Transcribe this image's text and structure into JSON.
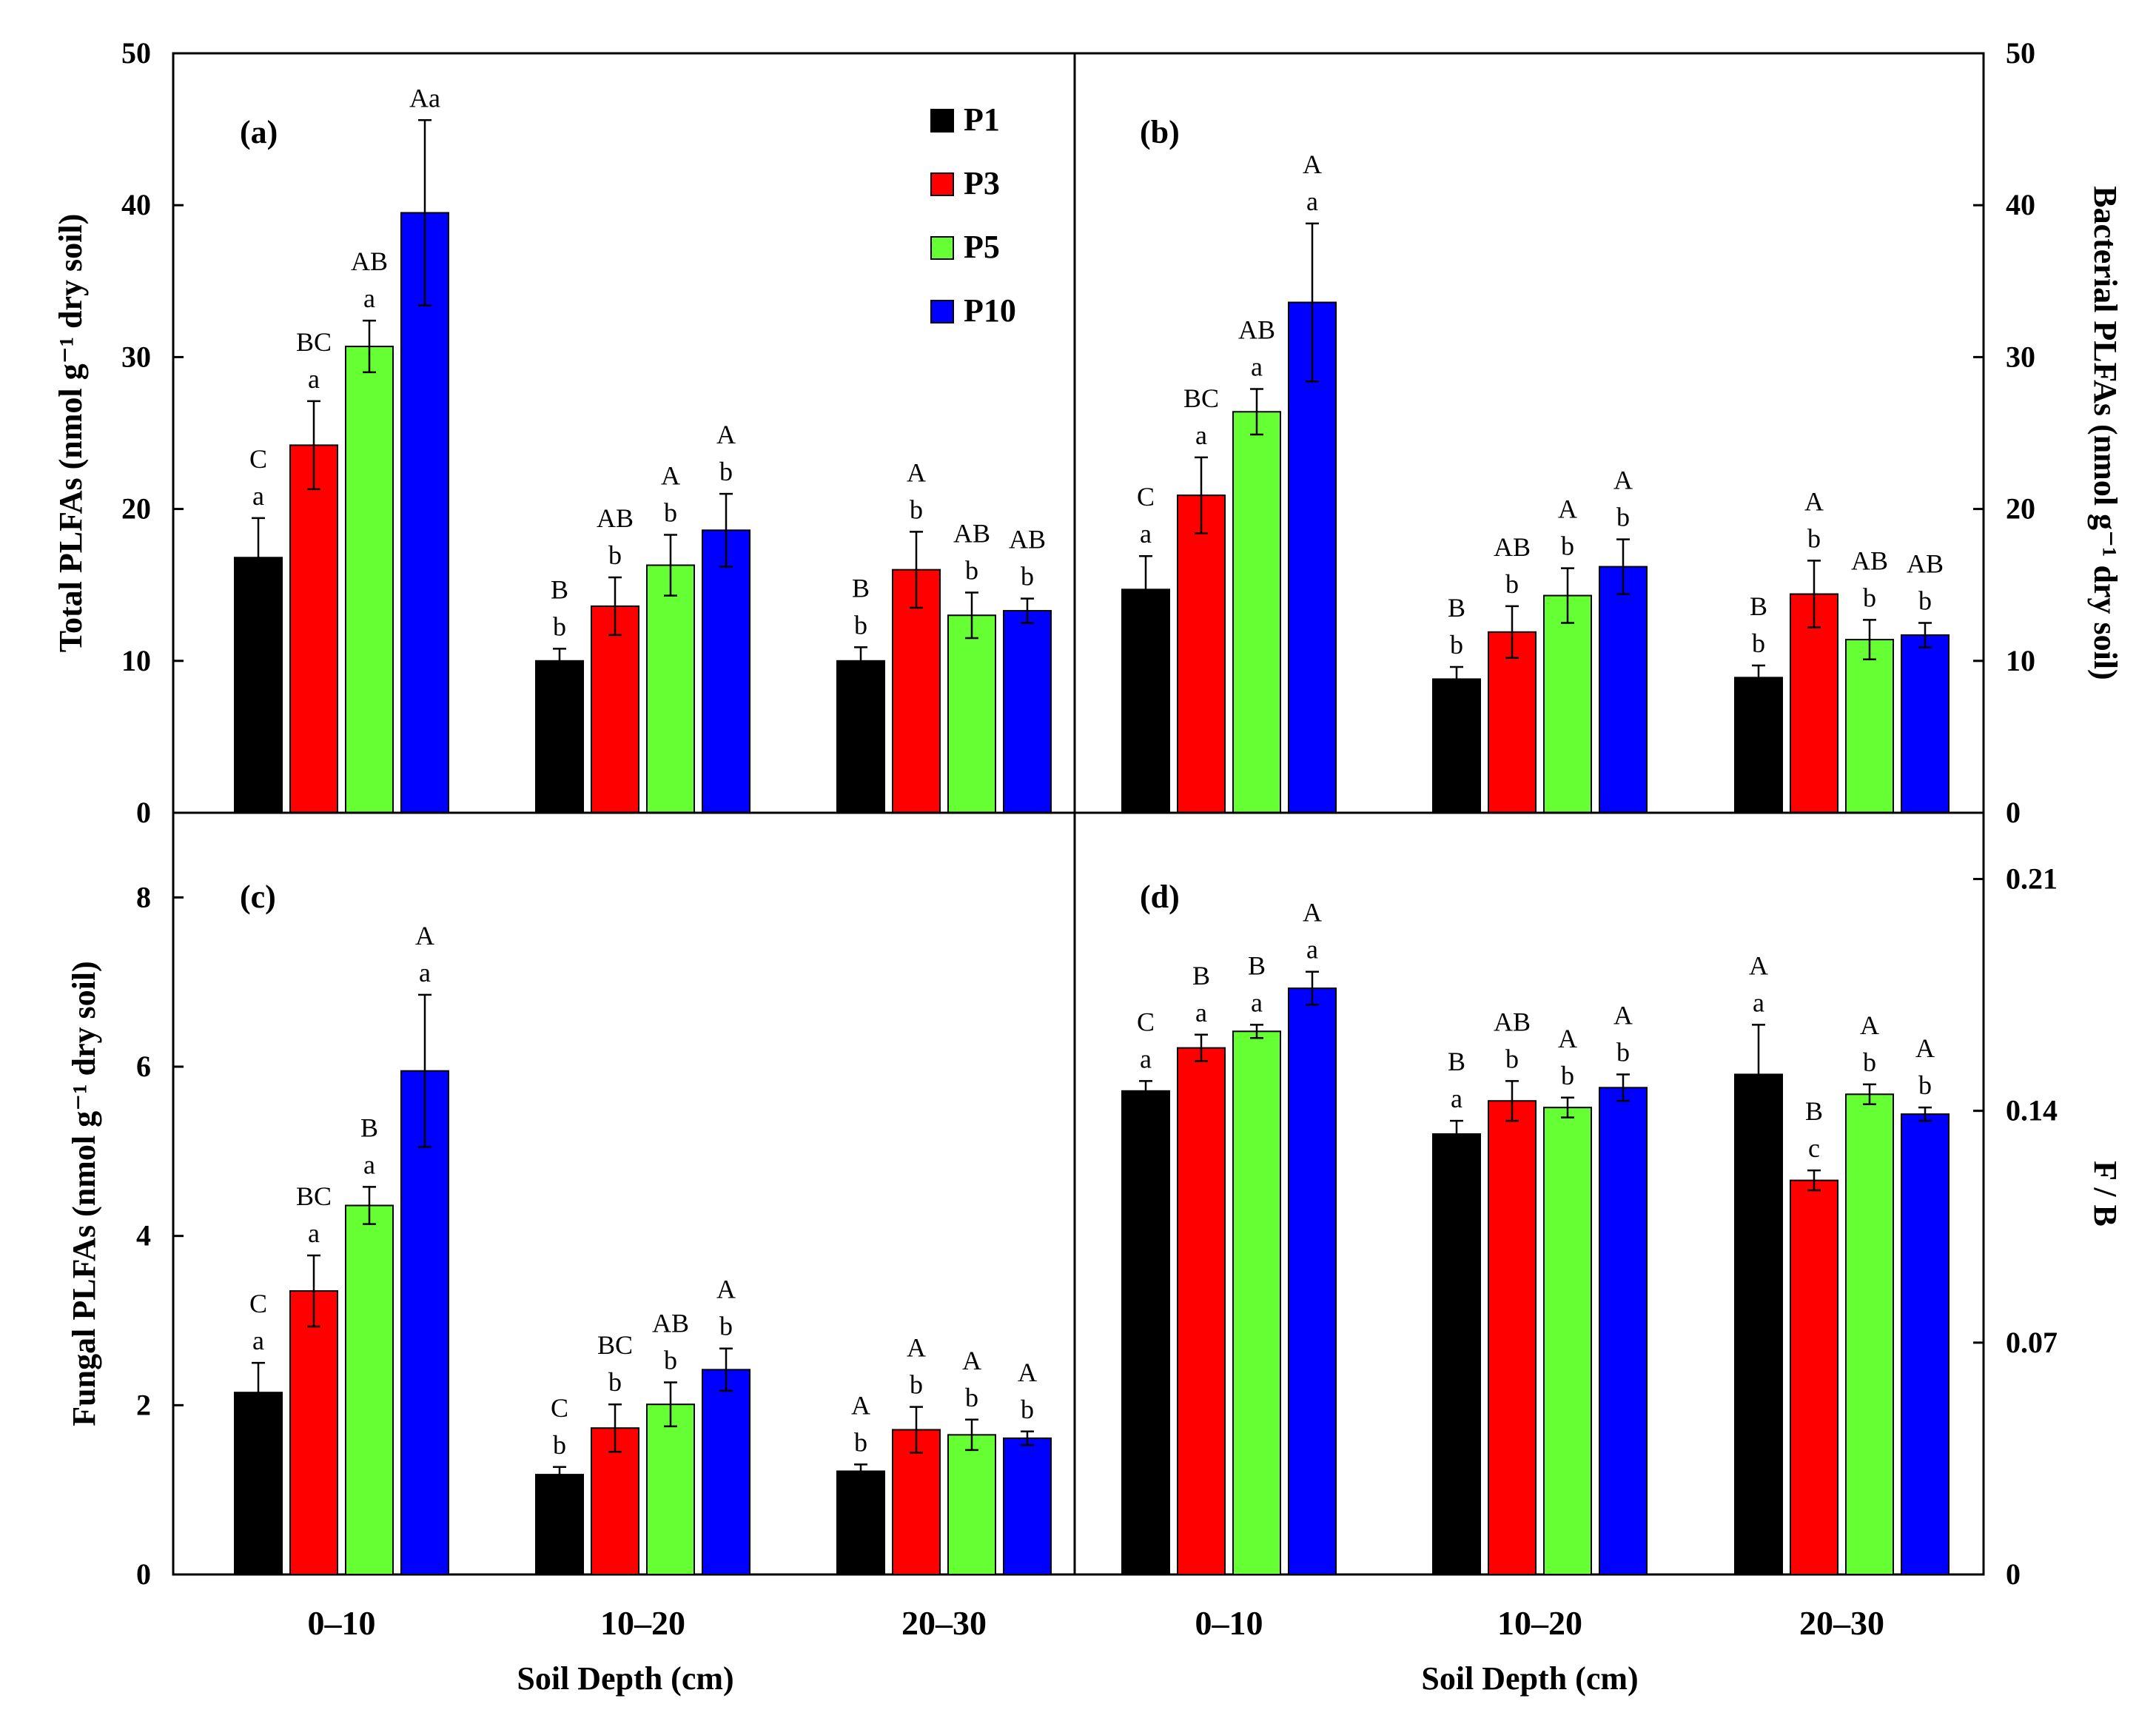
{
  "colors": {
    "P1": "#000000",
    "P3": "#ff0000",
    "P5": "#66ff33",
    "P10": "#0000ff"
  },
  "legend": [
    "P1",
    "P3",
    "P5",
    "P10"
  ],
  "xlabel": "Soil Depth (cm)",
  "chart_data": [
    {
      "type": "bar",
      "id": "a",
      "panel_label": "(a)",
      "ylabel": "Total PLFAs (nmol g⁻¹ dry soil)",
      "ylim": [
        0,
        50
      ],
      "yticks": [
        "0",
        "10",
        "20",
        "30",
        "40",
        "50"
      ],
      "ytick_values": [
        0,
        10,
        20,
        30,
        40,
        50
      ],
      "categories": [
        "0–10",
        "10–20",
        "20–30"
      ],
      "series": [
        {
          "name": "P1",
          "values": [
            16.8,
            10.0,
            10.0
          ],
          "errors": [
            2.6,
            0.8,
            0.9
          ]
        },
        {
          "name": "P3",
          "values": [
            24.2,
            13.6,
            16.0
          ],
          "errors": [
            2.9,
            1.9,
            2.5
          ]
        },
        {
          "name": "P5",
          "values": [
            30.7,
            16.3,
            13.0
          ],
          "errors": [
            1.7,
            2.0,
            1.5
          ]
        },
        {
          "name": "P10",
          "values": [
            39.5,
            18.6,
            13.3
          ],
          "errors": [
            6.1,
            2.4,
            0.8
          ]
        }
      ],
      "labels": [
        [
          [
            "C",
            "a"
          ],
          [
            "B",
            "b"
          ],
          [
            "B",
            "b"
          ]
        ],
        [
          [
            "BC",
            "a"
          ],
          [
            "AB",
            "b"
          ],
          [
            "A",
            "b"
          ]
        ],
        [
          [
            "AB",
            "a"
          ],
          [
            "A",
            "b"
          ],
          [
            "AB",
            "b"
          ]
        ],
        [
          [
            "Aa"
          ],
          [
            "A",
            "b"
          ],
          [
            "AB",
            "b"
          ]
        ]
      ]
    },
    {
      "type": "bar",
      "id": "b",
      "panel_label": "(b)",
      "ylabel": "Bacterial PLFAs (nmol g⁻¹ dry soil)",
      "ylim": [
        0,
        50
      ],
      "yticks": [
        "0",
        "10",
        "20",
        "30",
        "40",
        "50"
      ],
      "ytick_values": [
        0,
        10,
        20,
        30,
        40,
        50
      ],
      "categories": [
        "0–10",
        "10–20",
        "20–30"
      ],
      "series": [
        {
          "name": "P1",
          "values": [
            14.7,
            8.8,
            8.9
          ],
          "errors": [
            2.2,
            0.8,
            0.8
          ]
        },
        {
          "name": "P3",
          "values": [
            20.9,
            11.9,
            14.4
          ],
          "errors": [
            2.5,
            1.7,
            2.2
          ]
        },
        {
          "name": "P5",
          "values": [
            26.4,
            14.3,
            11.4
          ],
          "errors": [
            1.5,
            1.8,
            1.3
          ]
        },
        {
          "name": "P10",
          "values": [
            33.6,
            16.2,
            11.7
          ],
          "errors": [
            5.2,
            1.8,
            0.8
          ]
        }
      ],
      "labels": [
        [
          [
            "C",
            "a"
          ],
          [
            "B",
            "b"
          ],
          [
            "B",
            "b"
          ]
        ],
        [
          [
            "BC",
            "a"
          ],
          [
            "AB",
            "b"
          ],
          [
            "A",
            "b"
          ]
        ],
        [
          [
            "AB",
            "a"
          ],
          [
            "A",
            "b"
          ],
          [
            "AB",
            "b"
          ]
        ],
        [
          [
            "A",
            "a"
          ],
          [
            "A",
            "b"
          ],
          [
            "AB",
            "b"
          ]
        ]
      ]
    },
    {
      "type": "bar",
      "id": "c",
      "panel_label": "(c)",
      "ylabel": "Fungal PLFAs (nmol g⁻¹ dry soil)",
      "ylim": [
        0,
        9
      ],
      "yticks": [
        "0",
        "2",
        "4",
        "6",
        "8"
      ],
      "ytick_values": [
        0,
        2,
        4,
        6,
        8
      ],
      "categories": [
        "0–10",
        "10–20",
        "20–30"
      ],
      "series": [
        {
          "name": "P1",
          "values": [
            2.15,
            1.18,
            1.22
          ],
          "errors": [
            0.35,
            0.09,
            0.08
          ]
        },
        {
          "name": "P3",
          "values": [
            3.35,
            1.73,
            1.71
          ],
          "errors": [
            0.42,
            0.28,
            0.27
          ]
        },
        {
          "name": "P5",
          "values": [
            4.36,
            2.01,
            1.65
          ],
          "errors": [
            0.22,
            0.26,
            0.18
          ]
        },
        {
          "name": "P10",
          "values": [
            5.95,
            2.42,
            1.61
          ],
          "errors": [
            0.9,
            0.25,
            0.08
          ]
        }
      ],
      "labels": [
        [
          [
            "C",
            "a"
          ],
          [
            "C",
            "b"
          ],
          [
            "A",
            "b"
          ]
        ],
        [
          [
            "BC",
            "a"
          ],
          [
            "BC",
            "b"
          ],
          [
            "A",
            "b"
          ]
        ],
        [
          [
            "B",
            "a"
          ],
          [
            "AB",
            "b"
          ],
          [
            "A",
            "b"
          ]
        ],
        [
          [
            "A",
            "a"
          ],
          [
            "A",
            "b"
          ],
          [
            "A",
            "b"
          ]
        ]
      ]
    },
    {
      "type": "bar",
      "id": "d",
      "panel_label": "(d)",
      "ylabel": "F / B",
      "ylim": [
        0,
        0.23
      ],
      "yticks": [
        "0",
        "0.07",
        "0.14",
        "0.21"
      ],
      "ytick_values": [
        0,
        0.07,
        0.14,
        0.21
      ],
      "categories": [
        "0–10",
        "10–20",
        "20–30"
      ],
      "series": [
        {
          "name": "P1",
          "values": [
            0.146,
            0.133,
            0.151
          ],
          "errors": [
            0.003,
            0.004,
            0.015
          ]
        },
        {
          "name": "P3",
          "values": [
            0.159,
            0.143,
            0.119
          ],
          "errors": [
            0.004,
            0.006,
            0.003
          ]
        },
        {
          "name": "P5",
          "values": [
            0.164,
            0.141,
            0.145
          ],
          "errors": [
            0.002,
            0.003,
            0.003
          ]
        },
        {
          "name": "P10",
          "values": [
            0.177,
            0.147,
            0.139
          ],
          "errors": [
            0.005,
            0.004,
            0.002
          ]
        }
      ],
      "labels": [
        [
          [
            "C",
            "a"
          ],
          [
            "B",
            "a"
          ],
          [
            "A",
            "a"
          ]
        ],
        [
          [
            "B",
            "a"
          ],
          [
            "AB",
            "b"
          ],
          [
            "B",
            "c"
          ]
        ],
        [
          [
            "B",
            "a"
          ],
          [
            "A",
            "b"
          ],
          [
            "A",
            "b"
          ]
        ],
        [
          [
            "A",
            "a"
          ],
          [
            "A",
            "b"
          ],
          [
            "A",
            "b"
          ]
        ]
      ]
    }
  ]
}
